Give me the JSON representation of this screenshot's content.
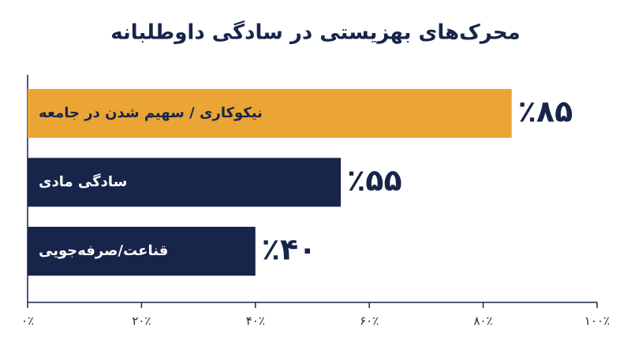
{
  "chart_data": {
    "type": "hbar",
    "title": "محرک‌های بهزیستی در سادگی داوطلبانه",
    "categories": [
      "نیکوکاری / سهیم شدن در جامعه",
      "سادگی مادی",
      "قناعت/صرفه‌جویی"
    ],
    "values": [
      85,
      55,
      40
    ],
    "value_labels": [
      "٪۸۵",
      "٪۵۵",
      "٪۴۰"
    ],
    "colors": [
      "#eaa535",
      "#17254b",
      "#17254b"
    ],
    "xlim": [
      0,
      100
    ],
    "xticks": [
      {
        "value": 0,
        "label": "۰٪"
      },
      {
        "value": 20,
        "label": "۲۰٪"
      },
      {
        "value": 40,
        "label": "۴۰٪"
      },
      {
        "value": 60,
        "label": "۶۰٪"
      },
      {
        "value": 80,
        "label": "۸۰٪"
      },
      {
        "value": 100,
        "label": "۱۰۰٪"
      }
    ]
  }
}
